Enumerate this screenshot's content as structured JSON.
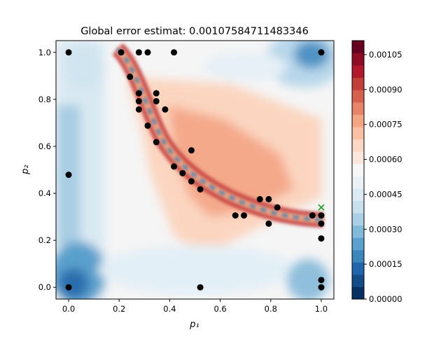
{
  "chart_data": {
    "type": "scatter",
    "title": "Global error estimat: 0.00107584711483346",
    "xlabel": "p₁",
    "ylabel": "p₂",
    "xlim": [
      -0.05,
      1.05
    ],
    "ylim": [
      -0.05,
      1.05
    ],
    "x_ticks": [
      "0.0",
      "0.2",
      "0.4",
      "0.6",
      "0.8",
      "1.0"
    ],
    "y_ticks": [
      "0.0",
      "0.2",
      "0.4",
      "0.6",
      "0.8",
      "1.0"
    ],
    "grid": false,
    "background": "filled contour of error estimate (blue = low, red = high) with a low-error ridge along the curve of sample points",
    "colorbar": {
      "range": [
        0.0,
        0.00111
      ],
      "ticks": [
        "0.00000",
        "0.00015",
        "0.00030",
        "0.00045",
        "0.00060",
        "0.00075",
        "0.00090",
        "0.00105"
      ],
      "colormap": "RdBu_r"
    },
    "series": [
      {
        "marker": "circle",
        "color": "#000000",
        "points": [
          [
            0.0,
            1.0
          ],
          [
            0.208,
            1.0
          ],
          [
            0.278,
            1.0
          ],
          [
            0.313,
            1.0
          ],
          [
            0.417,
            1.0
          ],
          [
            1.0,
            1.0
          ],
          [
            0.243,
            0.896
          ],
          [
            0.278,
            0.826
          ],
          [
            0.347,
            0.826
          ],
          [
            0.278,
            0.792
          ],
          [
            0.347,
            0.792
          ],
          [
            0.278,
            0.757
          ],
          [
            0.382,
            0.757
          ],
          [
            0.313,
            0.688
          ],
          [
            0.347,
            0.618
          ],
          [
            0.486,
            0.583
          ],
          [
            0.417,
            0.514
          ],
          [
            0.451,
            0.486
          ],
          [
            0.486,
            0.451
          ],
          [
            0.521,
            0.417
          ],
          [
            0.0,
            0.479
          ],
          [
            0.757,
            0.375
          ],
          [
            0.792,
            0.375
          ],
          [
            0.826,
            0.34
          ],
          [
            0.66,
            0.306
          ],
          [
            0.694,
            0.306
          ],
          [
            0.965,
            0.306
          ],
          [
            1.0,
            0.306
          ],
          [
            0.792,
            0.271
          ],
          [
            1.0,
            0.271
          ],
          [
            1.0,
            0.208
          ],
          [
            1.0,
            0.031
          ],
          [
            0.0,
            0.0
          ],
          [
            0.521,
            0.0
          ],
          [
            1.0,
            0.0
          ]
        ]
      },
      {
        "marker": "x",
        "color": "#2ca02c",
        "points": [
          [
            1.0,
            0.34
          ]
        ]
      }
    ]
  }
}
